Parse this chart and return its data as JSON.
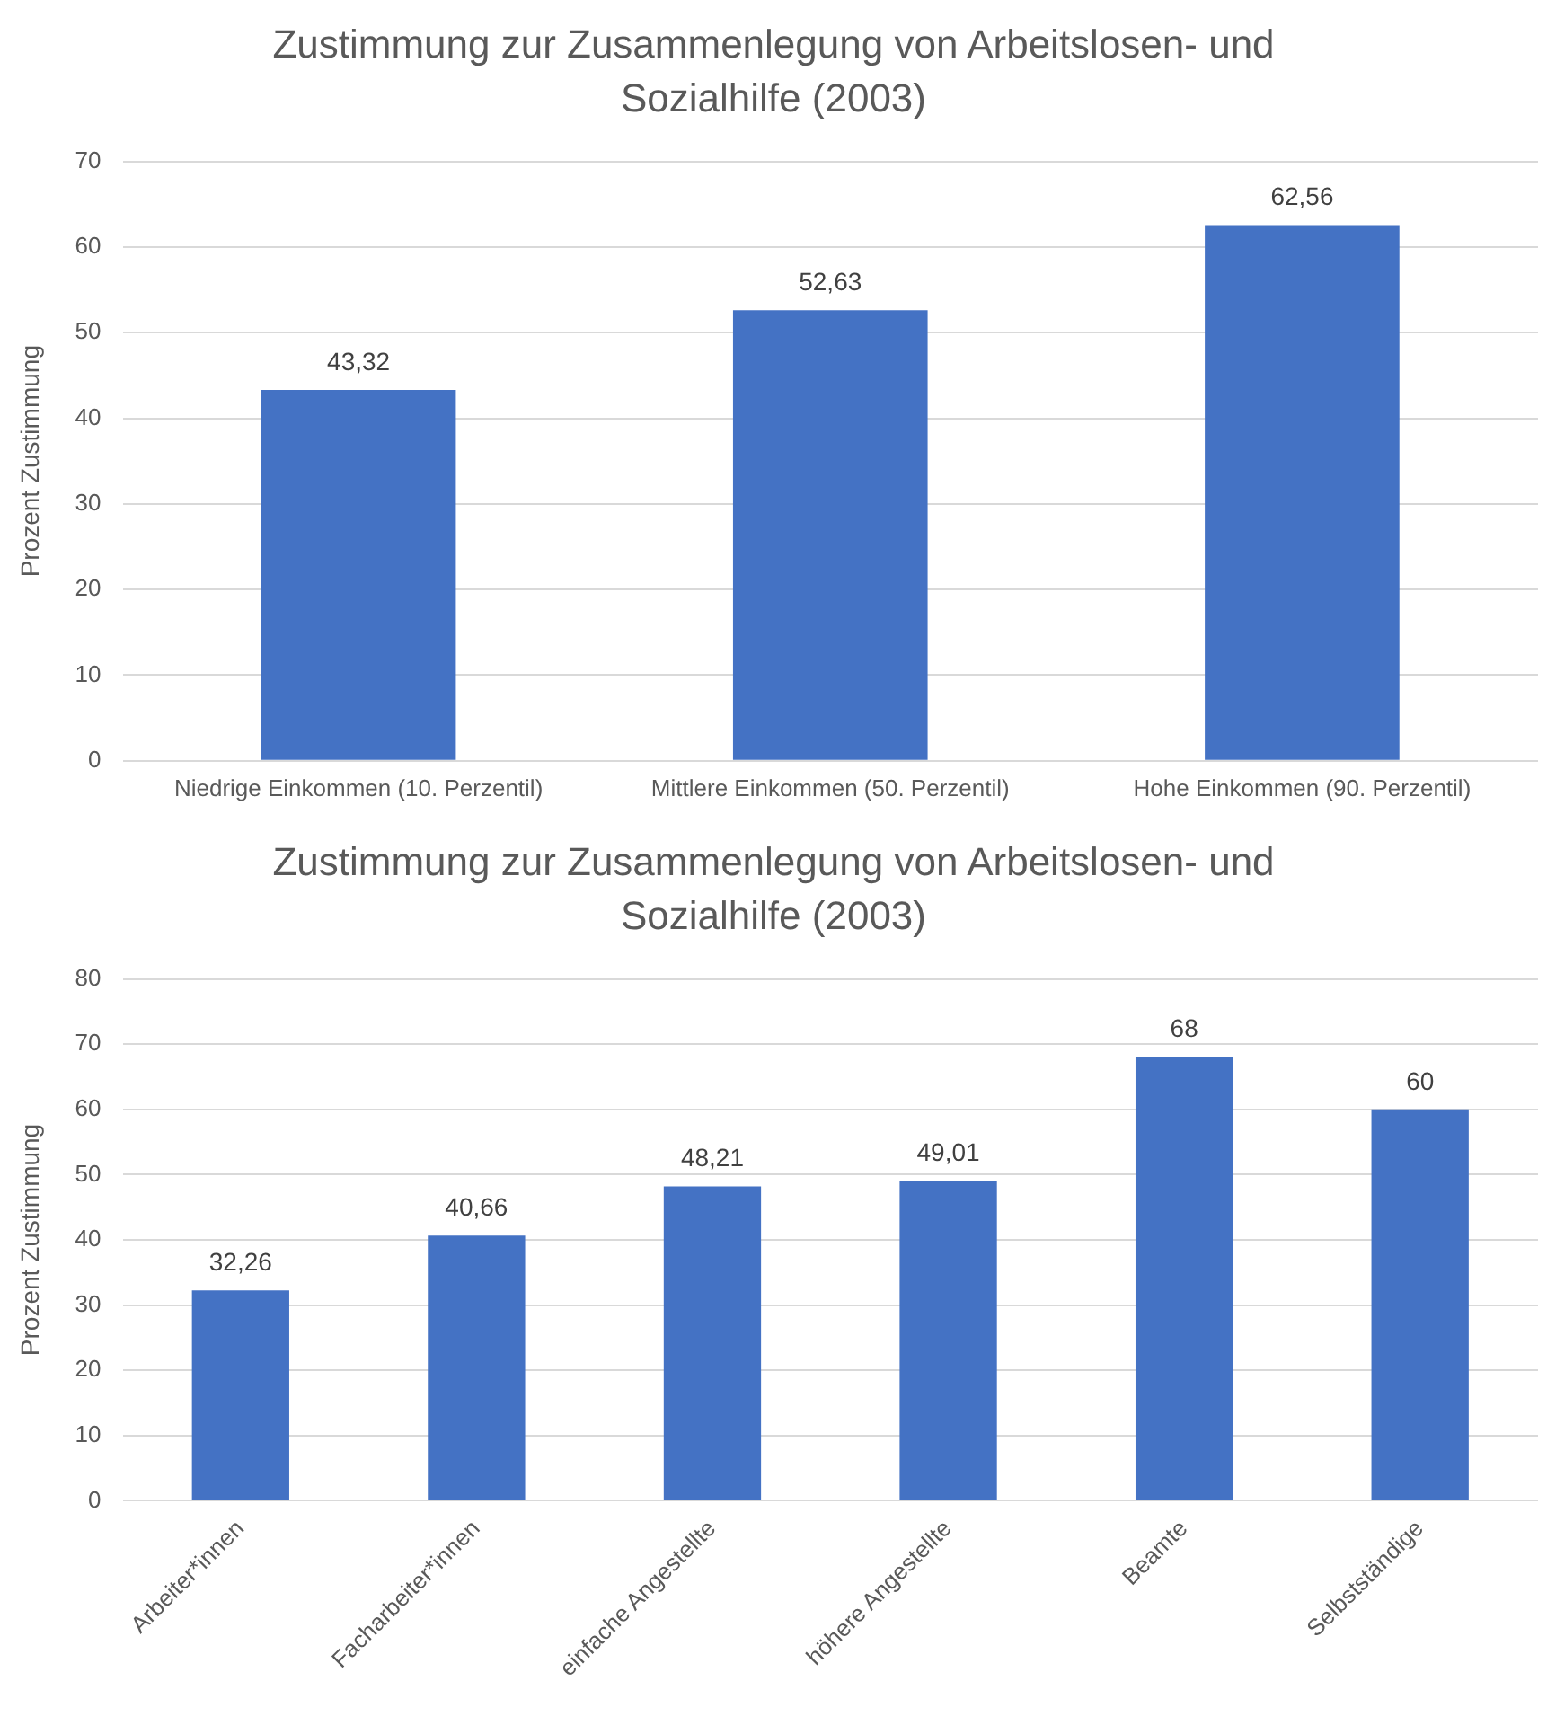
{
  "chart_data": [
    {
      "type": "bar",
      "title": "Zustimmung zur Zusammenlegung von Arbeitslosen- und Sozialhilfe (2003)",
      "ylabel": "Prozent Zustimmung",
      "categories": [
        "Niedrige Einkommen (10. Perzentil)",
        "Mittlere Einkommen (50. Perzentil)",
        "Hohe Einkommen (90. Perzentil)"
      ],
      "values": [
        43.32,
        52.63,
        62.56
      ],
      "value_labels": [
        "43,32",
        "52,63",
        "62,56"
      ],
      "color": "#4472c4",
      "ylim": [
        0,
        70
      ],
      "yticks": [
        0,
        10,
        20,
        30,
        40,
        50,
        60,
        70
      ],
      "grid": "y"
    },
    {
      "type": "bar",
      "title": "Zustimmung zur Zusammenlegung von Arbeitslosen- und Sozialhilfe (2003)",
      "ylabel": "Prozent Zustimmung",
      "categories": [
        "Arbeiter*innen",
        "Facharbeiter*innen",
        "einfache Angestellte",
        "höhere Angestellte",
        "Beamte",
        "Selbstständige"
      ],
      "values": [
        32.26,
        40.66,
        48.21,
        49.01,
        68,
        60
      ],
      "value_labels": [
        "32,26",
        "40,66",
        "48,21",
        "49,01",
        "68",
        "60"
      ],
      "color": "#4472c4",
      "ylim": [
        0,
        80
      ],
      "yticks": [
        0,
        10,
        20,
        30,
        40,
        50,
        60,
        70,
        80
      ],
      "grid": "y"
    }
  ]
}
